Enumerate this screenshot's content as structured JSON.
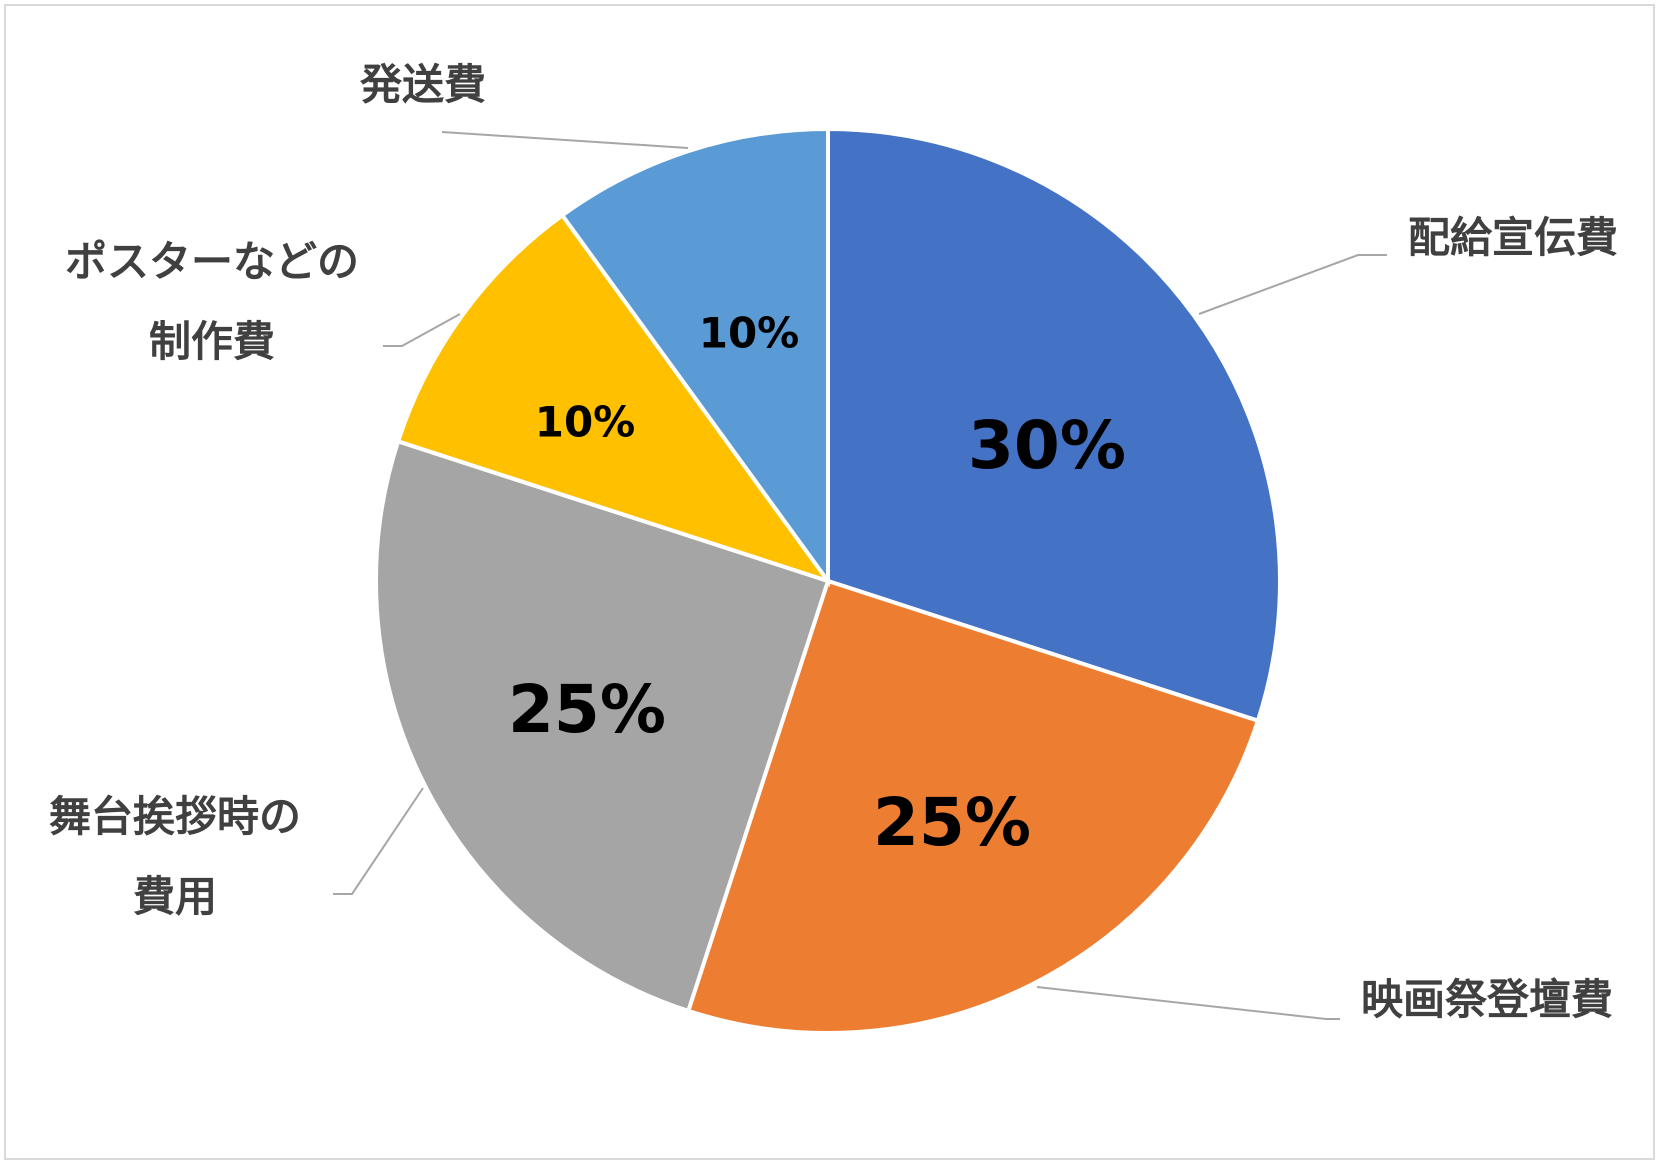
{
  "chart_data": {
    "type": "pie",
    "categories": [
      "配給宣伝費",
      "映画祭登壇費",
      "舞台挨拶時の費用",
      "ポスターなどの制作費",
      "発送費"
    ],
    "values": [
      30,
      25,
      25,
      10,
      10
    ],
    "value_labels": [
      "30%",
      "25%",
      "25%",
      "10%",
      "10%"
    ],
    "colors": [
      "#4472c4",
      "#ed7d31",
      "#a5a5a5",
      "#ffc000",
      "#5b9bd5"
    ]
  }
}
